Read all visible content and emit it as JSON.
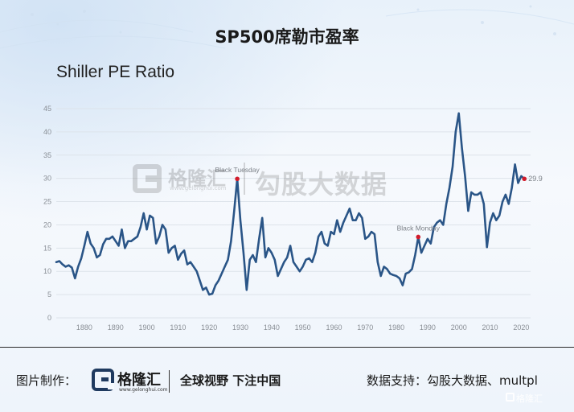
{
  "title": "SP500席勒市盈率",
  "watermark": {
    "brand": "格隆汇",
    "site": "www.gelonghui.com",
    "text": "勾股大数据"
  },
  "footer": {
    "made_by_label": "图片制作：",
    "brand": "格隆汇",
    "site": "www.gelonghui.com",
    "slogan": "全球视野 下注中国",
    "source": "数据支持：勾股大数据、multpl",
    "corner_brand": "格隆汇"
  },
  "colors": {
    "line": "#2a5587",
    "marker": "#d11b2b",
    "grid": "#dde3ea",
    "axis_text": "#8a8f96"
  },
  "chart_data": {
    "type": "line",
    "title": "Shiller PE Ratio",
    "xlabel": "",
    "ylabel": "",
    "xlim": [
      1871,
      2023
    ],
    "ylim": [
      0,
      45
    ],
    "x_ticks": [
      1880,
      1890,
      1900,
      1910,
      1920,
      1930,
      1940,
      1950,
      1960,
      1970,
      1980,
      1990,
      2000,
      2010,
      2020
    ],
    "y_ticks": [
      0,
      5,
      10,
      15,
      20,
      25,
      30,
      35,
      40,
      45
    ],
    "grid": "horizontal",
    "series": [
      {
        "name": "",
        "x": [
          1871,
          1872,
          1873,
          1874,
          1875,
          1876,
          1877,
          1878,
          1879,
          1880,
          1881,
          1882,
          1883,
          1884,
          1885,
          1886,
          1887,
          1888,
          1889,
          1890,
          1891,
          1892,
          1893,
          1894,
          1895,
          1896,
          1897,
          1898,
          1899,
          1900,
          1901,
          1902,
          1903,
          1904,
          1905,
          1906,
          1907,
          1908,
          1909,
          1910,
          1911,
          1912,
          1913,
          1914,
          1915,
          1916,
          1917,
          1918,
          1919,
          1920,
          1921,
          1922,
          1923,
          1924,
          1925,
          1926,
          1927,
          1928,
          1929,
          1930,
          1931,
          1932,
          1933,
          1934,
          1935,
          1936,
          1937,
          1938,
          1939,
          1940,
          1941,
          1942,
          1943,
          1944,
          1945,
          1946,
          1947,
          1948,
          1949,
          1950,
          1951,
          1952,
          1953,
          1954,
          1955,
          1956,
          1957,
          1958,
          1959,
          1960,
          1961,
          1962,
          1963,
          1964,
          1965,
          1966,
          1967,
          1968,
          1969,
          1970,
          1971,
          1972,
          1973,
          1974,
          1975,
          1976,
          1977,
          1978,
          1979,
          1980,
          1981,
          1982,
          1983,
          1984,
          1985,
          1986,
          1987,
          1988,
          1989,
          1990,
          1991,
          1992,
          1993,
          1994,
          1995,
          1996,
          1997,
          1998,
          1999,
          2000,
          2001,
          2002,
          2003,
          2004,
          2005,
          2006,
          2007,
          2008,
          2009,
          2010,
          2011,
          2012,
          2013,
          2014,
          2015,
          2016,
          2017,
          2018,
          2019,
          2020,
          2021
        ],
        "y": [
          12.0,
          12.2,
          11.5,
          11.0,
          11.3,
          10.8,
          8.5,
          11.0,
          12.8,
          15.5,
          18.5,
          16.0,
          15.0,
          13.0,
          13.5,
          15.8,
          17.0,
          17.0,
          17.5,
          16.5,
          15.5,
          19.0,
          15.0,
          16.5,
          16.5,
          17.0,
          17.5,
          19.5,
          22.5,
          19.0,
          22.0,
          21.5,
          16.0,
          17.5,
          20.0,
          19.0,
          14.0,
          15.0,
          15.5,
          12.5,
          13.8,
          14.5,
          11.5,
          12.0,
          11.0,
          10.0,
          8.0,
          6.0,
          6.5,
          5.0,
          5.2,
          7.0,
          8.0,
          9.5,
          11.0,
          12.5,
          16.5,
          23.0,
          29.9,
          21.0,
          14.0,
          6.0,
          12.5,
          13.5,
          12.0,
          17.0,
          21.5,
          13.0,
          15.0,
          14.0,
          12.5,
          9.0,
          10.5,
          12.0,
          13.0,
          15.5,
          12.0,
          11.0,
          10.0,
          11.0,
          12.5,
          12.8,
          12.0,
          14.0,
          17.5,
          18.5,
          16.0,
          15.5,
          18.5,
          18.0,
          21.0,
          18.5,
          20.5,
          22.0,
          23.5,
          21.0,
          21.0,
          22.5,
          21.5,
          17.0,
          17.5,
          18.5,
          18.0,
          12.0,
          9.0,
          11.0,
          10.5,
          9.5,
          9.2,
          9.0,
          8.5,
          7.0,
          9.5,
          9.8,
          10.5,
          13.5,
          17.4,
          14.0,
          15.5,
          17.0,
          16.0,
          19.5,
          20.5,
          21.0,
          20.0,
          24.5,
          28.0,
          32.5,
          40.0,
          44.0,
          36.5,
          30.5,
          23.0,
          27.0,
          26.5,
          26.5,
          27.0,
          24.5,
          15.2,
          20.5,
          22.5,
          21.0,
          22.0,
          25.0,
          26.5,
          24.5,
          28.0,
          33.0,
          29.0,
          30.5,
          29.9
        ]
      }
    ],
    "annotations": [
      {
        "label": "Black Tuesday",
        "x": 1929,
        "y": 29.9
      },
      {
        "label": "Black Monday",
        "x": 1987,
        "y": 17.4
      },
      {
        "label": "29.9",
        "x": 2021,
        "y": 29.9
      }
    ]
  }
}
